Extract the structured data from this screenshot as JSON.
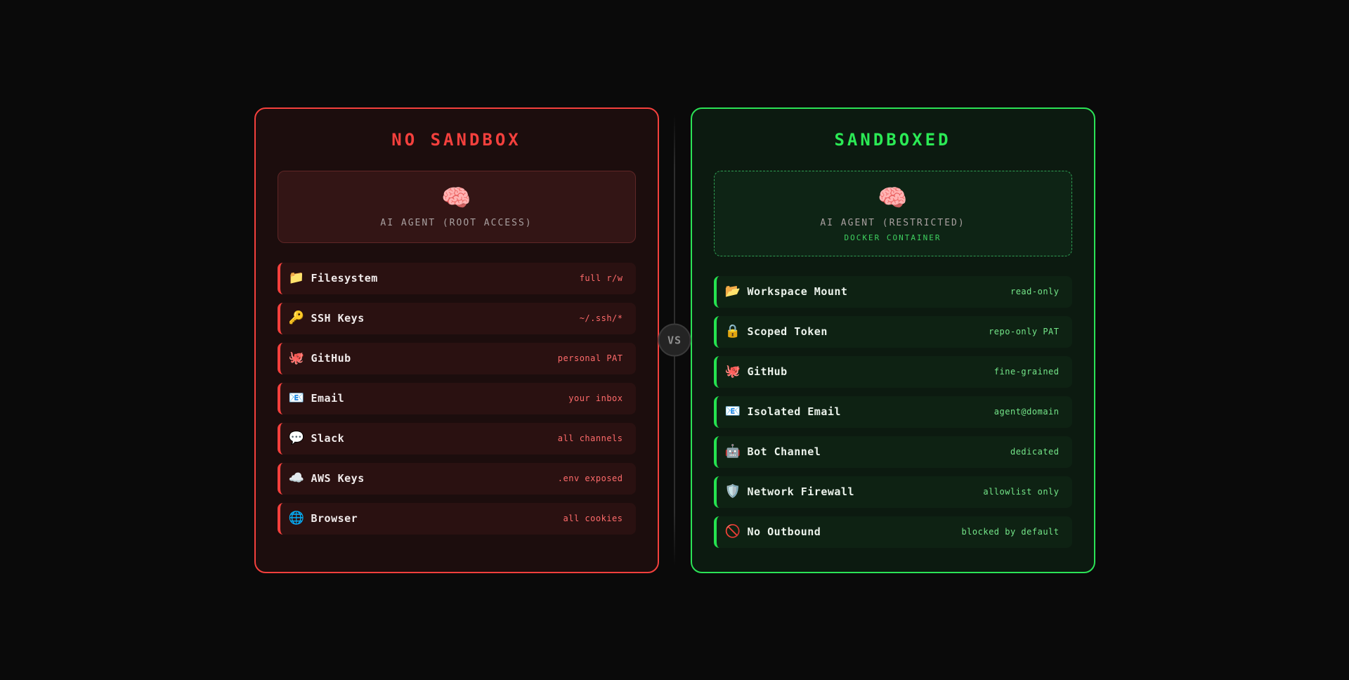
{
  "vs_badge": {
    "label": "VS"
  },
  "colors": {
    "page_bg": "#0a0a0a",
    "danger_accent": "#f4403d",
    "danger_panel_bg": "#1c0d0d",
    "danger_row_bg": "#2a1111",
    "danger_value_text": "#ff6b6b",
    "safe_accent": "#2be356",
    "safe_panel_bg": "#0c1a10",
    "safe_row_bg": "#0e2213",
    "safe_value_text": "#74e689",
    "safe_sub_text": "#3fd160",
    "agent_label_text": "#a9a0a0",
    "divider": "#2e2e2e",
    "vs_text": "#8f8f8f"
  },
  "left_panel": {
    "title": "NO SANDBOX",
    "agent": {
      "icon": "🧠",
      "icon_name": "brain-icon",
      "label": "AI AGENT (ROOT ACCESS)",
      "sublabel": ""
    },
    "items": [
      {
        "icon": "📁",
        "icon_name": "folder-icon",
        "label": "Filesystem",
        "value": "full r/w"
      },
      {
        "icon": "🔑",
        "icon_name": "key-icon",
        "label": "SSH Keys",
        "value": "~/.ssh/*"
      },
      {
        "icon": "🐙",
        "icon_name": "octopus-icon",
        "label": "GitHub",
        "value": "personal PAT"
      },
      {
        "icon": "📧",
        "icon_name": "email-icon",
        "label": "Email",
        "value": "your inbox"
      },
      {
        "icon": "💬",
        "icon_name": "speech-balloon-icon",
        "label": "Slack",
        "value": "all channels"
      },
      {
        "icon": "☁️",
        "icon_name": "cloud-icon",
        "label": "AWS Keys",
        "value": ".env exposed"
      },
      {
        "icon": "🌐",
        "icon_name": "globe-icon",
        "label": "Browser",
        "value": "all cookies"
      }
    ]
  },
  "right_panel": {
    "title": "SANDBOXED",
    "agent": {
      "icon": "🧠",
      "icon_name": "brain-icon",
      "label": "AI AGENT (RESTRICTED)",
      "sublabel": "DOCKER CONTAINER"
    },
    "items": [
      {
        "icon": "📂",
        "icon_name": "open-folder-icon",
        "label": "Workspace Mount",
        "value": "read-only"
      },
      {
        "icon": "🔒",
        "icon_name": "lock-icon",
        "label": "Scoped Token",
        "value": "repo-only PAT"
      },
      {
        "icon": "🐙",
        "icon_name": "octopus-icon",
        "label": "GitHub",
        "value": "fine-grained"
      },
      {
        "icon": "📧",
        "icon_name": "email-icon",
        "label": "Isolated Email",
        "value": "agent@domain"
      },
      {
        "icon": "🤖",
        "icon_name": "robot-icon",
        "label": "Bot Channel",
        "value": "dedicated"
      },
      {
        "icon": "🛡️",
        "icon_name": "shield-icon",
        "label": "Network Firewall",
        "value": "allowlist only"
      },
      {
        "icon": "🚫",
        "icon_name": "no-entry-icon",
        "label": "No Outbound",
        "value": "blocked by default"
      }
    ]
  }
}
